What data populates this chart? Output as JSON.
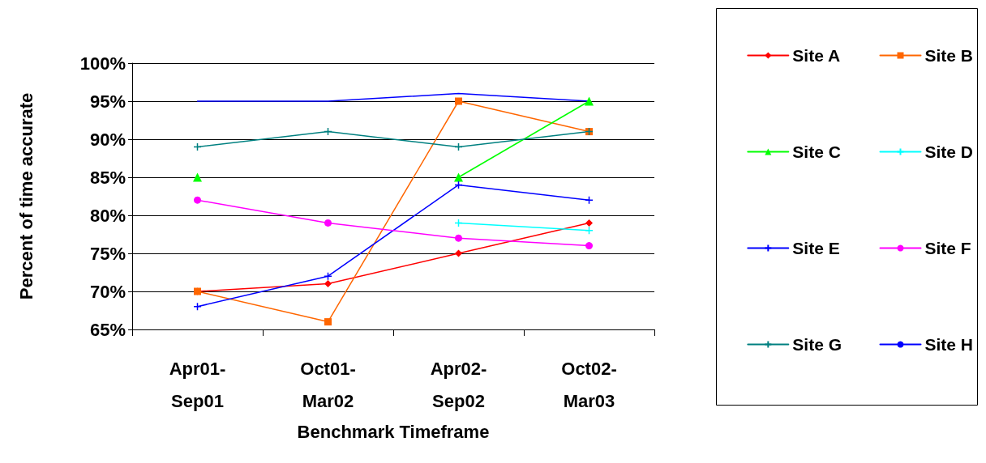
{
  "chart_data": {
    "type": "line",
    "xlabel": "Benchmark Timeframe",
    "ylabel": "Percent of time accurate",
    "categories": [
      "Apr01-\nSep01",
      "Oct01-\nMar02",
      "Apr02-\nSep02",
      "Oct02-\nMar03"
    ],
    "series": [
      {
        "name": "Site A",
        "color": "#ff0000",
        "marker": "diamond",
        "values": [
          70,
          71,
          75,
          79
        ]
      },
      {
        "name": "Site B",
        "color": "#ff6600",
        "marker": "square",
        "values": [
          70,
          66,
          95,
          91
        ]
      },
      {
        "name": "Site C",
        "color": "#00ff00",
        "marker": "triangle",
        "values": [
          85,
          null,
          85,
          95
        ]
      },
      {
        "name": "Site D",
        "color": "#00ffff",
        "marker": "cross",
        "values": [
          null,
          null,
          79,
          78
        ]
      },
      {
        "name": "Site E",
        "color": "#0000ff",
        "marker": "cross",
        "values": [
          68,
          72,
          84,
          82
        ]
      },
      {
        "name": "Site F",
        "color": "#ff00ff",
        "marker": "circle",
        "values": [
          82,
          79,
          77,
          76
        ]
      },
      {
        "name": "Site G",
        "color": "#008080",
        "marker": "cross",
        "values": [
          89,
          91,
          89,
          91
        ]
      },
      {
        "name": "Site H",
        "color": "#0000ff",
        "marker": "none",
        "values": [
          95,
          95,
          96,
          95
        ]
      }
    ],
    "ylim": [
      65,
      100
    ],
    "yticks": [
      {
        "value": 65,
        "label": "65%"
      },
      {
        "value": 70,
        "label": "70%"
      },
      {
        "value": 75,
        "label": "75%"
      },
      {
        "value": 80,
        "label": "80%"
      },
      {
        "value": 85,
        "label": "85%"
      },
      {
        "value": 90,
        "label": "90%"
      },
      {
        "value": 95,
        "label": "95%"
      },
      {
        "value": 100,
        "label": "100%"
      }
    ],
    "grid": "y",
    "legend": "right",
    "line_style": "solid"
  }
}
